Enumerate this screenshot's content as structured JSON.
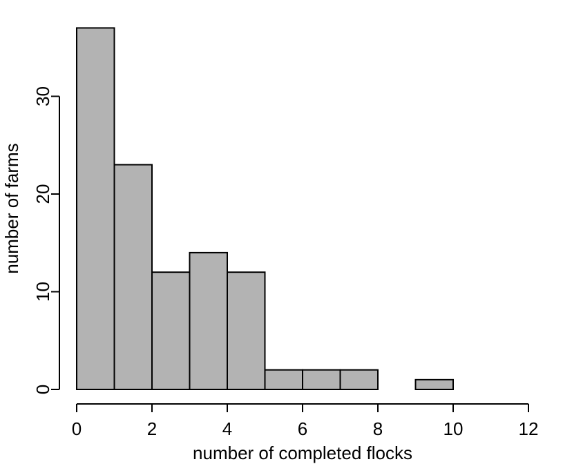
{
  "chart_data": {
    "type": "bar",
    "title": "",
    "xlabel": "number of completed flocks",
    "ylabel": "number of farms",
    "bins": [
      {
        "from": 0,
        "to": 1,
        "count": 37
      },
      {
        "from": 1,
        "to": 2,
        "count": 23
      },
      {
        "from": 2,
        "to": 3,
        "count": 12
      },
      {
        "from": 3,
        "to": 4,
        "count": 14
      },
      {
        "from": 4,
        "to": 5,
        "count": 12
      },
      {
        "from": 5,
        "to": 6,
        "count": 2
      },
      {
        "from": 6,
        "to": 7,
        "count": 2
      },
      {
        "from": 7,
        "to": 8,
        "count": 2
      },
      {
        "from": 8,
        "to": 9,
        "count": 0
      },
      {
        "from": 9,
        "to": 10,
        "count": 1
      },
      {
        "from": 10,
        "to": 11,
        "count": 0
      },
      {
        "from": 11,
        "to": 12,
        "count": 0
      }
    ],
    "xlim": [
      0,
      12
    ],
    "ylim": [
      0,
      37
    ],
    "x_ticks": [
      "0",
      "2",
      "4",
      "6",
      "8",
      "10",
      "12"
    ],
    "y_ticks": [
      "0",
      "10",
      "20",
      "30"
    ],
    "grid": false,
    "legend": "none",
    "colors": {
      "bar_fill": "#b3b3b3",
      "bar_stroke": "#000000",
      "axis": "#000000"
    }
  }
}
